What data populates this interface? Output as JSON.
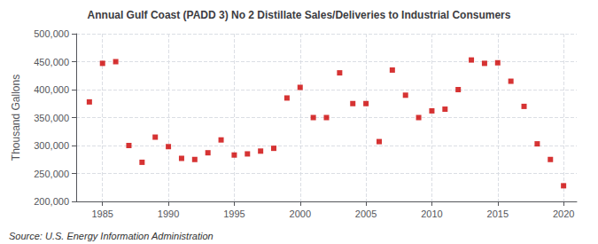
{
  "chart_data": {
    "type": "scatter",
    "title": "Annual Gulf Coast (PADD 3) No 2 Distillate Sales/Deliveries to Industrial Consumers",
    "ylabel": "Thousand Gallons",
    "annotations": [
      "Source: U.S. Energy Information Administration"
    ],
    "x": [
      1984,
      1985,
      1986,
      1987,
      1988,
      1989,
      1990,
      1991,
      1992,
      1993,
      1994,
      1995,
      1996,
      1997,
      1998,
      1999,
      2000,
      2001,
      2002,
      2003,
      2004,
      2005,
      2006,
      2007,
      2008,
      2009,
      2010,
      2011,
      2012,
      2013,
      2014,
      2015,
      2016,
      2017,
      2018,
      2019,
      2020
    ],
    "values": [
      378000,
      447000,
      450000,
      300000,
      270000,
      315000,
      298000,
      277000,
      275000,
      287000,
      310000,
      283000,
      285000,
      290000,
      295000,
      385000,
      404000,
      350000,
      350000,
      430000,
      375000,
      375000,
      307000,
      435000,
      390000,
      350000,
      362000,
      365000,
      400000,
      453000,
      447000,
      448000,
      415000,
      370000,
      303000,
      275000,
      228000
    ],
    "color": "#cc0000",
    "marker": "square",
    "xlim": [
      1983,
      2021
    ],
    "ylim": [
      200000,
      500000
    ],
    "xticks": [
      1985,
      1990,
      1995,
      2000,
      2005,
      2010,
      2015,
      2020
    ],
    "yticks": [
      {
        "value": 200000,
        "label": "200,000"
      },
      {
        "value": 250000,
        "label": "250,000"
      },
      {
        "value": 300000,
        "label": "300,000"
      },
      {
        "value": 350000,
        "label": "350,000"
      },
      {
        "value": 400000,
        "label": "400,000"
      },
      {
        "value": 450000,
        "label": "450,000"
      },
      {
        "value": 500000,
        "label": "500,000"
      }
    ],
    "grid": true
  }
}
